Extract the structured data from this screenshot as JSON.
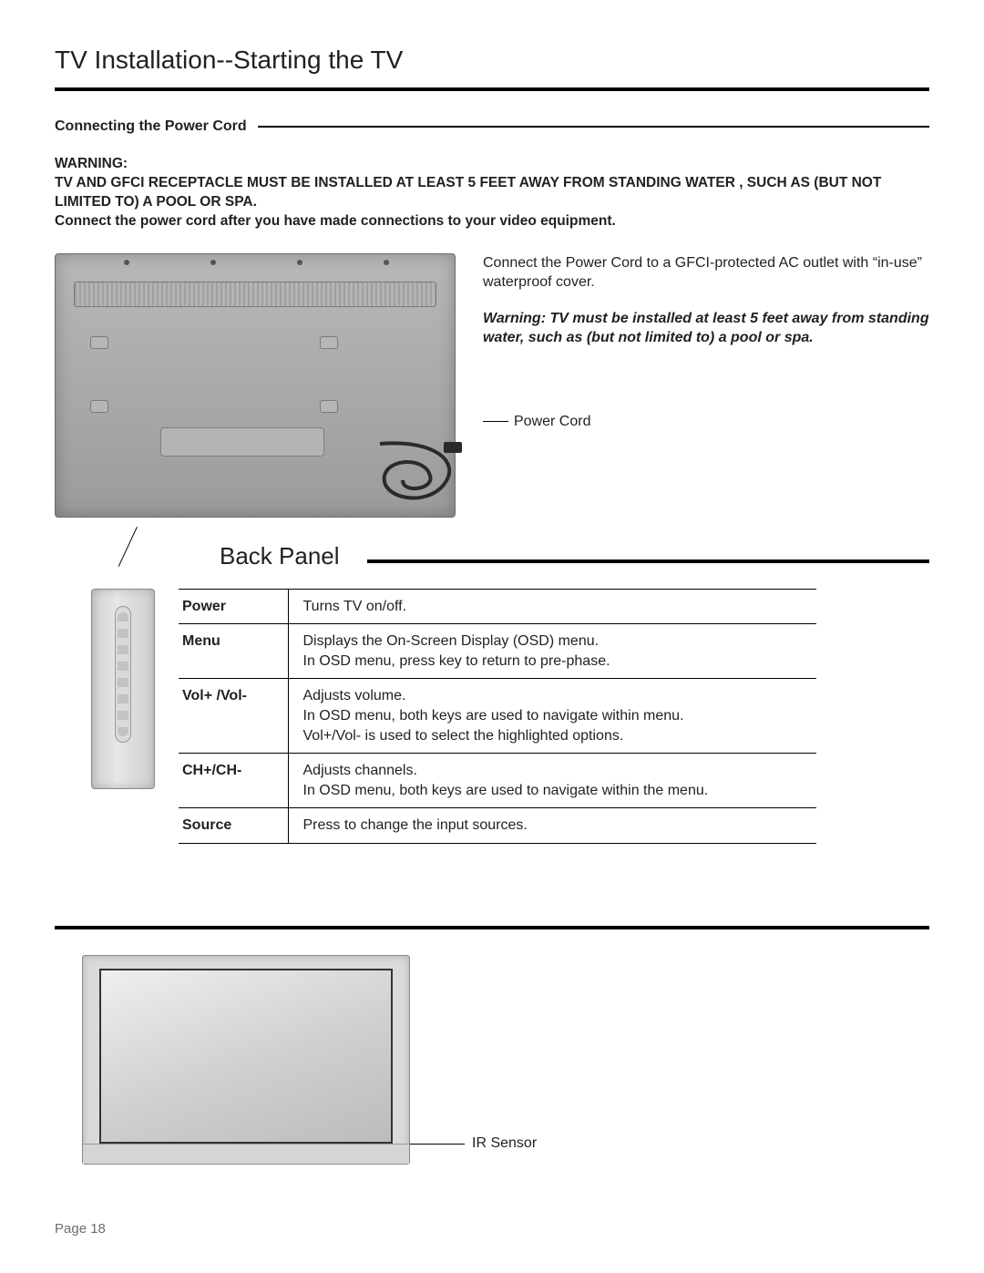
{
  "heading": "TV Installation--Starting the TV",
  "section1": {
    "title": "Connecting the Power Cord",
    "warning_label": "WARNING:",
    "warning_line1": "TV AND GFCI RECEPTACLE MUST BE INSTALLED AT LEAST 5 FEET AWAY FROM STANDING WATER , SUCH AS (BUT NOT LIMITED TO) A POOL OR SPA.",
    "warning_line2": "Connect the power cord after you have made connections to your video equipment.",
    "connect_text": "Connect the Power Cord to a GFCI-protected AC outlet with “in-use” waterproof cover.",
    "italic_warning": "Warning: TV must be installed at least 5 feet away from standing water, such as (but not limited to) a pool or spa.",
    "power_cord_label": "Power Cord"
  },
  "back_panel_title": "Back Panel",
  "controls": [
    {
      "key": "Power",
      "desc": "Turns TV on/off."
    },
    {
      "key": "Menu",
      "desc": "Displays the On-Screen Display (OSD) menu.\nIn OSD menu, press key to return to pre-phase."
    },
    {
      "key": "Vol+ /Vol-",
      "desc": "Adjusts volume.\nIn OSD menu, both keys are used to navigate within menu.\nVol+/Vol- is used to select the highlighted options."
    },
    {
      "key": "CH+/CH-",
      "desc": "Adjusts channels.\n In OSD menu, both keys are used to navigate within the menu."
    },
    {
      "key": "Source",
      "desc": "Press to change the input sources."
    }
  ],
  "ir_label": "IR Sensor",
  "page_label": "Page 18",
  "colors": {
    "text": "#231f20",
    "rule": "#000000",
    "page_num": "#6d6e70",
    "tv_back_bg": "#a6a7a7",
    "side_panel_bg": "#d9dad9"
  }
}
